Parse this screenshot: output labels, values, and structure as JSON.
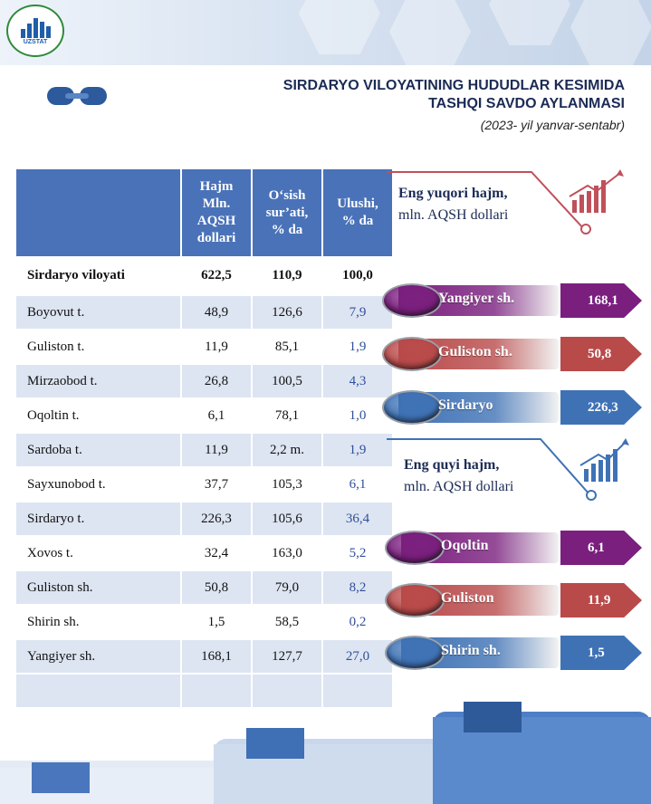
{
  "header": {
    "logo_text": "UZSTAT",
    "title_line1": "SIRDARYO VILOYATINING HUDUDLAR KESIMIDA",
    "title_line2": "TASHQI SAVDO AYLANMASI",
    "subtitle": "(2023- yil yanvar-sentabr)"
  },
  "table": {
    "columns": [
      "",
      "Hajm Mln. AQSH dollari",
      "O‘sish sur’ati, % da",
      "Ulushi, % da"
    ],
    "col_lines": [
      [
        "Hajm",
        "Mln.",
        "AQSH",
        "dollari"
      ],
      [
        "O‘sish",
        "sur’ati,",
        "% da"
      ],
      [
        "Ulushi,",
        "% da"
      ]
    ],
    "rows": [
      {
        "name": "Sirdaryo viloyati",
        "volume": "622,5",
        "growth": "110,9",
        "share": "100,0"
      },
      {
        "name": "Boyovut t.",
        "volume": "48,9",
        "growth": "126,6",
        "share": "7,9"
      },
      {
        "name": "Guliston t.",
        "volume": "11,9",
        "growth": "85,1",
        "share": "1,9"
      },
      {
        "name": "Mirzaobod t.",
        "volume": "26,8",
        "growth": "100,5",
        "share": "4,3"
      },
      {
        "name": "Oqoltin t.",
        "volume": "6,1",
        "growth": "78,1",
        "share": "1,0"
      },
      {
        "name": "Sardoba t.",
        "volume": "11,9",
        "growth": "2,2 m.",
        "share": "1,9"
      },
      {
        "name": "Sayxunobod t.",
        "volume": "37,7",
        "growth": "105,3",
        "share": "6,1"
      },
      {
        "name": "Sirdaryo t.",
        "volume": "226,3",
        "growth": "105,6",
        "share": "36,4"
      },
      {
        "name": "Xovos t.",
        "volume": "32,4",
        "growth": "163,0",
        "share": "5,2"
      },
      {
        "name": "Guliston sh.",
        "volume": "50,8",
        "growth": "79,0",
        "share": "8,2"
      },
      {
        "name": "Shirin sh.",
        "volume": "1,5",
        "growth": "58,5",
        "share": "0,2"
      },
      {
        "name": "Yangiyer sh.",
        "volume": "168,1",
        "growth": "127,7",
        "share": "27,0"
      }
    ]
  },
  "highest": {
    "label_line1": "Eng yuqori hajm,",
    "label_line2": "mln. AQSH dollari",
    "items": [
      {
        "name": "Yangiyer sh.",
        "value": "168,1",
        "color": "#7a1f7e"
      },
      {
        "name": "Guliston sh.",
        "value": "50,8",
        "color": "#b94a4a"
      },
      {
        "name": "Sirdaryo",
        "value": "226,3",
        "color": "#3f72b5"
      }
    ]
  },
  "lowest": {
    "label_line1": "Eng quyi hajm,",
    "label_line2": "mln. AQSH dollari",
    "items": [
      {
        "name": "Oqoltin",
        "value": "6,1",
        "color": "#7a1f7e"
      },
      {
        "name": "Guliston",
        "value": "11,9",
        "color": "#b94a4a"
      },
      {
        "name": "Shirin sh.",
        "value": "1,5",
        "color": "#3f72b5"
      }
    ]
  }
}
